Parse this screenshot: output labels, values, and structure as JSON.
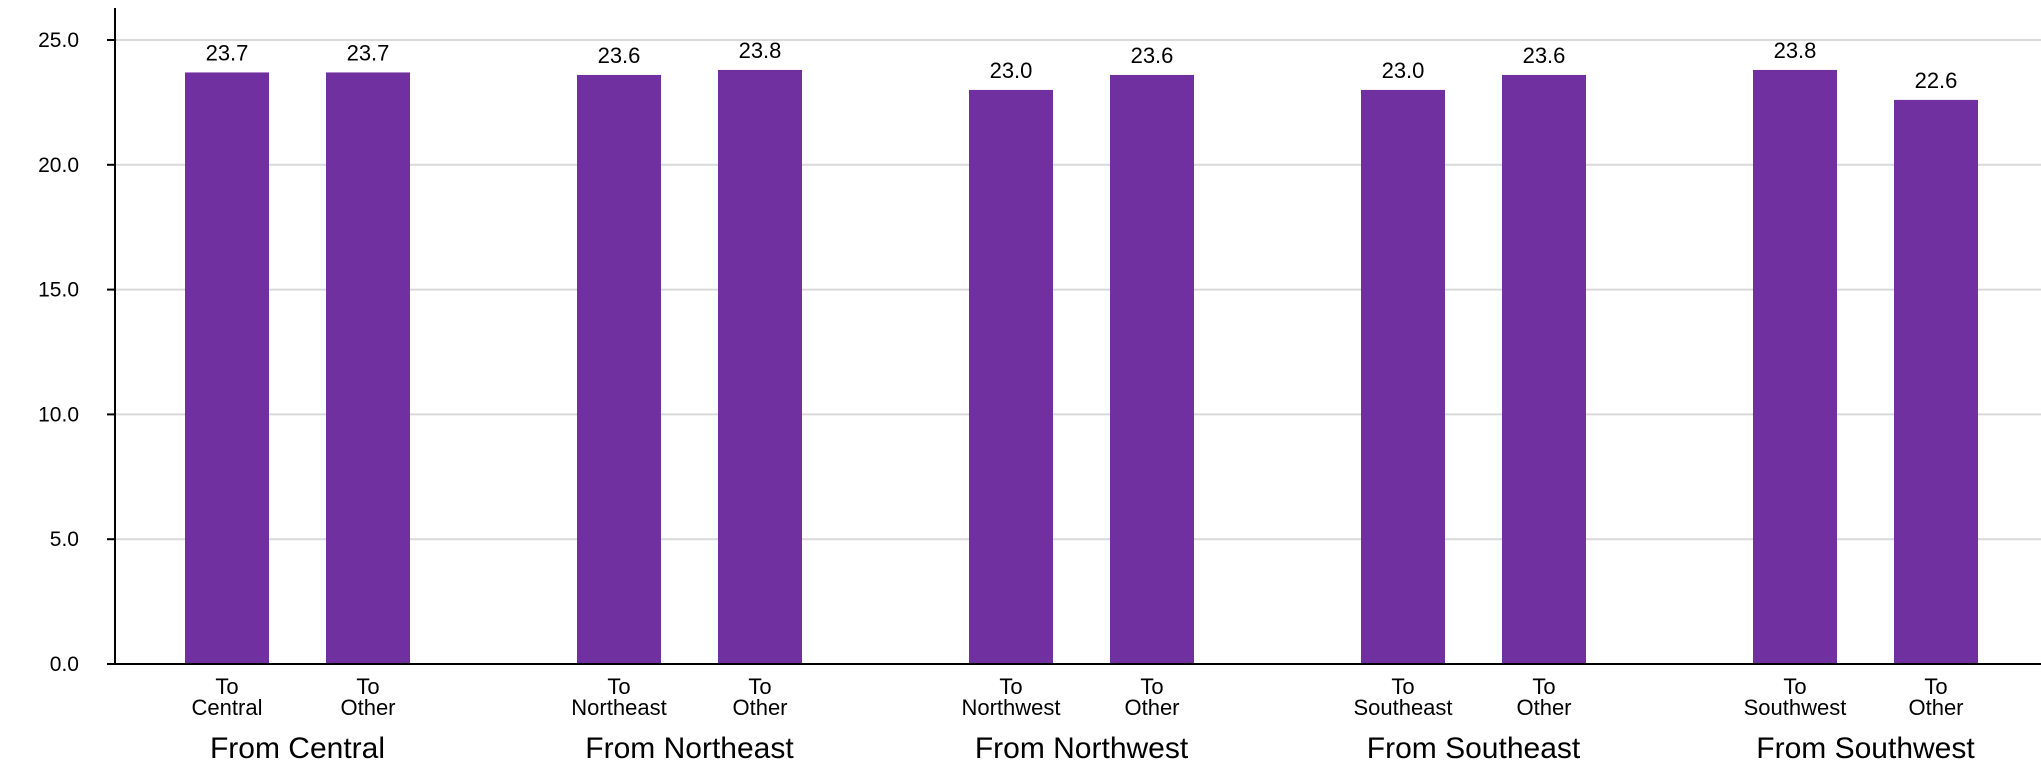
{
  "chart_data": {
    "type": "bar",
    "title": "",
    "xlabel": "",
    "ylabel": "",
    "ylim": [
      0,
      25
    ],
    "yticks": [
      "0.0",
      "5.0",
      "10.0",
      "15.0",
      "20.0",
      "25.0"
    ],
    "grid": true,
    "bar_color": "#7030A0",
    "groups": [
      {
        "name": "From Central",
        "bars": [
          {
            "category": [
              "To",
              "Central"
            ],
            "value": 23.7,
            "label": "23.7"
          },
          {
            "category": [
              "To",
              "Other"
            ],
            "value": 23.7,
            "label": "23.7"
          }
        ]
      },
      {
        "name": "From Northeast",
        "bars": [
          {
            "category": [
              "To",
              "Northeast"
            ],
            "value": 23.6,
            "label": "23.6"
          },
          {
            "category": [
              "To",
              "Other"
            ],
            "value": 23.8,
            "label": "23.8"
          }
        ]
      },
      {
        "name": "From Northwest",
        "bars": [
          {
            "category": [
              "To",
              "Northwest"
            ],
            "value": 23.0,
            "label": "23.0"
          },
          {
            "category": [
              "To",
              "Other"
            ],
            "value": 23.6,
            "label": "23.6"
          }
        ]
      },
      {
        "name": "From Southeast",
        "bars": [
          {
            "category": [
              "To",
              "Southeast"
            ],
            "value": 23.0,
            "label": "23.0"
          },
          {
            "category": [
              "To",
              "Other"
            ],
            "value": 23.6,
            "label": "23.6"
          }
        ]
      },
      {
        "name": "From Southwest",
        "bars": [
          {
            "category": [
              "To",
              "Southwest"
            ],
            "value": 23.8,
            "label": "23.8"
          },
          {
            "category": [
              "To",
              "Other"
            ],
            "value": 22.6,
            "label": "22.6"
          }
        ]
      }
    ]
  }
}
